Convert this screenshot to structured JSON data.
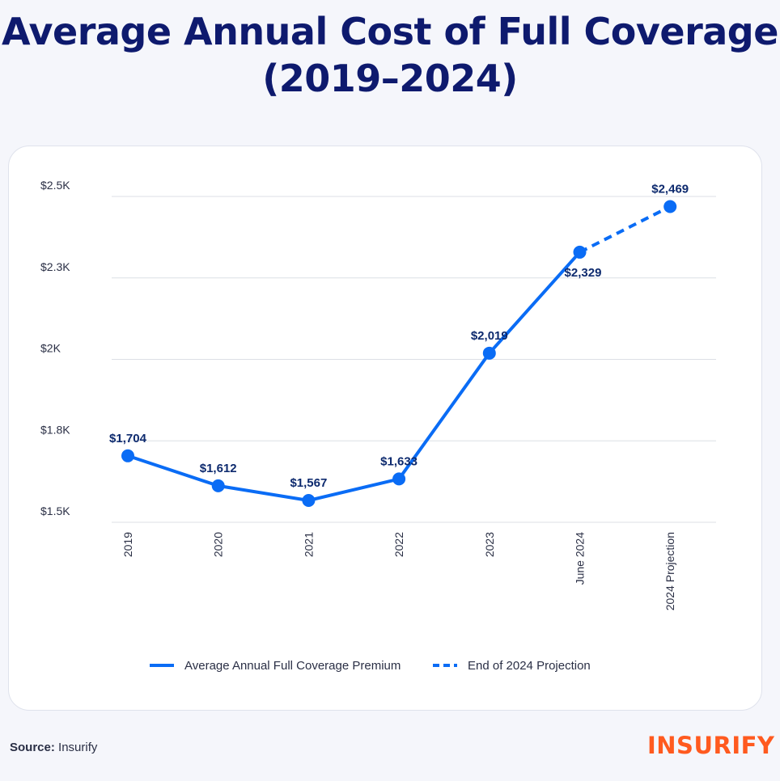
{
  "title": "Average Annual Cost of Full Coverage (2019–2024)",
  "source": {
    "label": "Source:",
    "value": "Insurify"
  },
  "logo": "INSURIFY",
  "colors": {
    "title": "#0e1a6e",
    "line": "#0a6cf5",
    "data_label": "#0d2a6e",
    "logo": "#ff5a1f"
  },
  "chart_data": {
    "type": "line",
    "title": "",
    "xlabel": "",
    "ylabel": "",
    "categories": [
      "2019",
      "2020",
      "2021",
      "2022",
      "2023",
      "June 2024",
      "2024 Projection"
    ],
    "ylim": [
      1500,
      2500
    ],
    "yticks": [
      1500,
      1750,
      2000,
      2250,
      2500
    ],
    "ytick_labels": [
      "$1.5K",
      "$1.8K",
      "$2K",
      "$2.3K",
      "$2.5K"
    ],
    "grid": true,
    "legend_position": "bottom",
    "series": [
      {
        "name": "Average Annual Full Coverage Premium",
        "style": "solid",
        "values": [
          1704,
          1612,
          1567,
          1633,
          2019,
          2329,
          null
        ]
      },
      {
        "name": "End of 2024 Projection",
        "style": "dashed",
        "values": [
          null,
          null,
          null,
          null,
          null,
          2329,
          2469
        ]
      }
    ],
    "data_labels": [
      "$1,704",
      "$1,612",
      "$1,567",
      "$1,633",
      "$2,019",
      "$2,329",
      "$2,469"
    ]
  }
}
